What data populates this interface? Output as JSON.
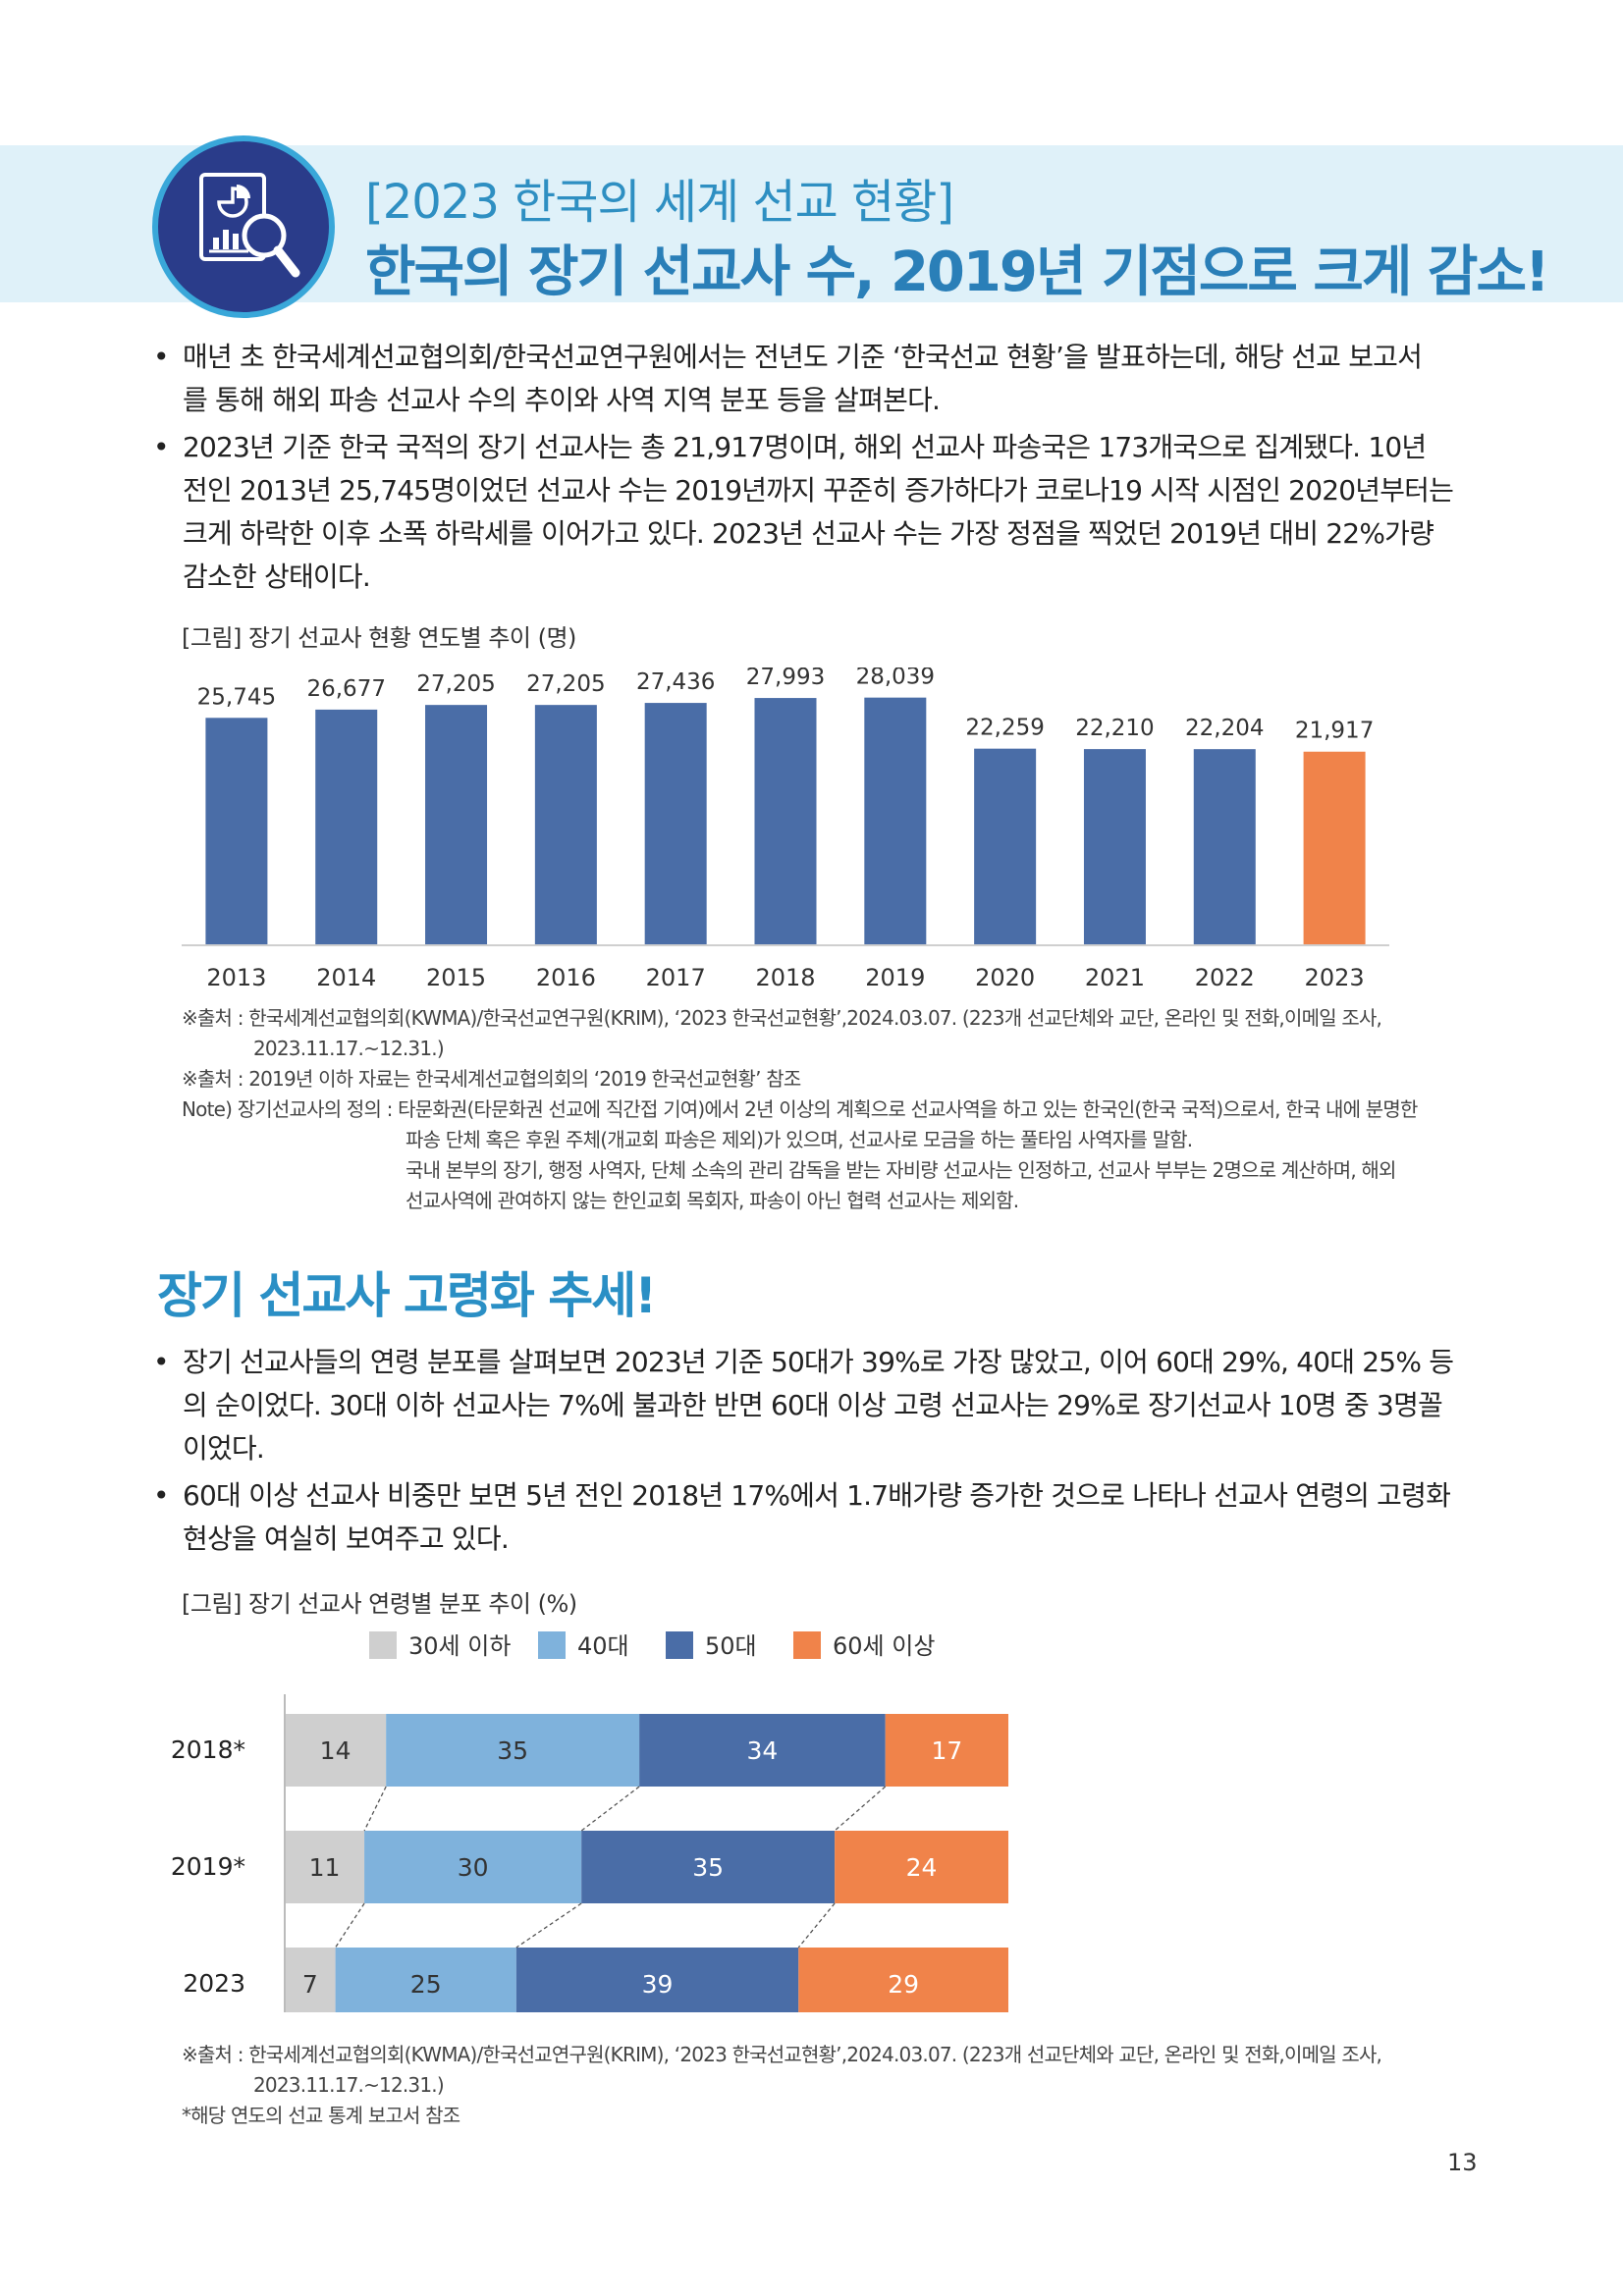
{
  "header": {
    "title_line1": "[2023 한국의 세계 선교 현황]",
    "title_line2": "한국의 장기 선교사 수, 2019년 기점으로 크게 감소!",
    "icon": "report-magnifier-icon",
    "colors": {
      "banner_bg": "#dff1f9",
      "circle": "#2a3c8a",
      "ring": "#39a7d9",
      "title": "#2e8fc2"
    }
  },
  "section1": {
    "paragraphs": [
      {
        "bullet": "•",
        "lines": [
          "매년 초 한국세계선교협의회/한국선교연구원에서는 전년도 기준 ‘한국선교 현황’을 발표하는데, 해당 선교 보고서",
          "를 통해 해외 파송 선교사 수의 추이와 사역 지역 분포 등을 살펴본다."
        ]
      },
      {
        "bullet": "•",
        "lines": [
          "2023년 기준 한국 국적의 장기 선교사는 총 21,917명이며, 해외 선교사 파송국은 173개국으로 집계됐다. 10년",
          "전인 2013년 25,745명이었던 선교사 수는 2019년까지 꾸준히 증가하다가 코로나19 시작 시점인 2020년부터는",
          "크게 하락한 이후 소폭 하락세를 이어가고 있다. 2023년 선교사 수는 가장 정점을 찍었던 2019년 대비 22%가량",
          "감소한 상태이다."
        ]
      }
    ],
    "figure_caption": "[그림] 장기 선교사 현황 연도별 추이 (명)",
    "notes": [
      "※출처 : 한국세계선교협의회(KWMA)/한국선교연구원(KRIM), ‘2023 한국선교현황’,2024.03.07. (223개 선교단체와 교단, 온라인 및 전화,이메일 조사,",
      "2023.11.17.~12.31.)",
      "※출처 : 2019년 이하 자료는 한국세계선교협의회의 ‘2019 한국선교현황’ 참조",
      "Note) 장기선교사의 정의 : 타문화권(타문화권 선교에 직간접 기여)에서 2년 이상의 계획으로 선교사역을 하고 있는 한국인(한국 국적)으로서, 한국 내에 분명한",
      "파송 단체 혹은 후원 주체(개교회 파송은 제외)가 있으며, 선교사로 모금을 하는 풀타임 사역자를 말함.",
      "국내 본부의 장기, 행정 사역자, 단체 소속의 관리 감독을 받는 자비량 선교사는 인정하고, 선교사 부부는 2명으로 계산하며, 해외",
      "선교사역에 관여하지 않는 한인교회 목회자, 파송이 아닌 협력 선교사는 제외함."
    ]
  },
  "section2": {
    "title": "장기 선교사 고령화 추세!",
    "paragraphs": [
      {
        "bullet": "•",
        "lines": [
          "장기 선교사들의 연령 분포를 살펴보면 2023년 기준 50대가 39%로 가장 많았고, 이어 60대 29%, 40대 25% 등",
          "의 순이었다. 30대 이하 선교사는 7%에 불과한 반면 60대 이상 고령 선교사는 29%로 장기선교사 10명 중 3명꼴",
          "이었다."
        ]
      },
      {
        "bullet": "•",
        "lines": [
          "60대 이상 선교사 비중만 보면 5년 전인 2018년 17%에서 1.7배가량 증가한 것으로 나타나 선교사 연령의 고령화",
          "현상을 여실히 보여주고 있다."
        ]
      }
    ],
    "figure_caption": "[그림] 장기 선교사 연령별 분포 추이 (%)",
    "notes": [
      "※출처 : 한국세계선교협의회(KWMA)/한국선교연구원(KRIM), ‘2023 한국선교현황’,2024.03.07. (223개 선교단체와 교단, 온라인 및 전화,이메일 조사,",
      "2023.11.17.~12.31.)",
      "*해당 연도의 선교 통계 보고서 참조"
    ]
  },
  "chart_data": [
    {
      "type": "bar",
      "categories": [
        "2013",
        "2014",
        "2015",
        "2016",
        "2017",
        "2018",
        "2019",
        "2020",
        "2021",
        "2022",
        "2023"
      ],
      "values": [
        25745,
        26677,
        27205,
        27205,
        27436,
        27993,
        28039,
        22259,
        22210,
        22204,
        21917
      ],
      "value_labels": [
        "25,745",
        "26,677",
        "27,205",
        "27,205",
        "27,436",
        "27,993",
        "28,039",
        "22,259",
        "22,210",
        "22,204",
        "21,917"
      ],
      "ylim": [
        0,
        30000
      ],
      "colors": {
        "default": "#4a6da7",
        "highlight": "#f0834a"
      },
      "highlight_category": "2023"
    },
    {
      "type": "bar",
      "orientation": "horizontal-stacked",
      "categories": [
        "2018*",
        "2019*",
        "2023"
      ],
      "series": [
        {
          "name": "30세 이하",
          "values": [
            14,
            11,
            7
          ],
          "color": "#cfcfcf"
        },
        {
          "name": "40대",
          "values": [
            35,
            30,
            25
          ],
          "color": "#7fb2dc"
        },
        {
          "name": "50대",
          "values": [
            34,
            35,
            39
          ],
          "color": "#4a6da7"
        },
        {
          "name": "60세 이상",
          "values": [
            17,
            24,
            29
          ],
          "color": "#f0834a"
        }
      ],
      "legend": "top",
      "xlim": [
        0,
        100
      ]
    }
  ],
  "page_number": "13"
}
